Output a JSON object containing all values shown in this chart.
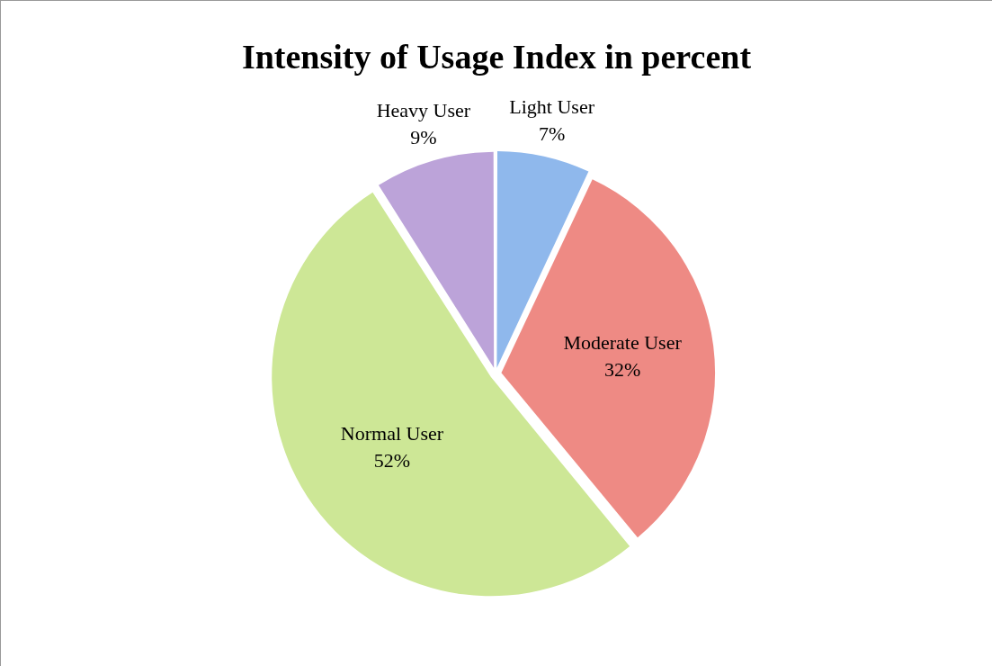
{
  "chart_data": {
    "type": "pie",
    "title": "Intensity of Usage Index in percent",
    "categories": [
      "Light User",
      "Moderate User",
      "Normal User",
      "Heavy User"
    ],
    "values": [
      7,
      32,
      52,
      9
    ],
    "colors": [
      "#8fb8ec",
      "#ee8a84",
      "#cde796",
      "#bca3d9"
    ],
    "value_labels": [
      "7%",
      "32%",
      "52%",
      "9%"
    ],
    "legend": false
  }
}
